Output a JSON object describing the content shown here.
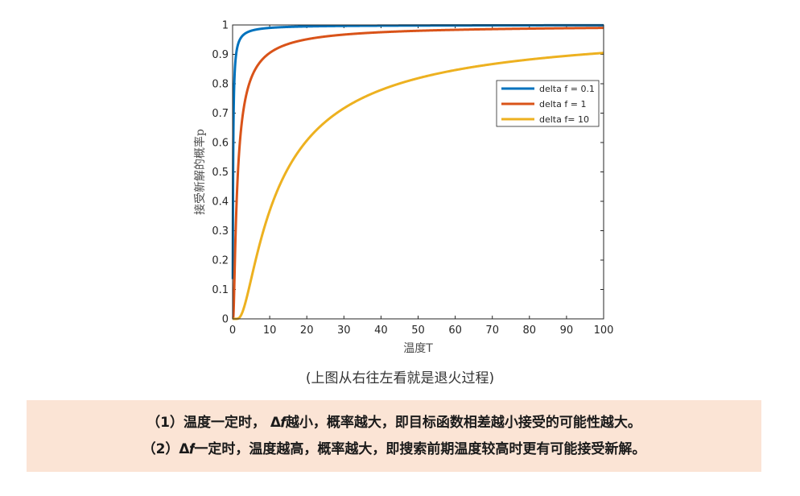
{
  "chart_data": {
    "type": "line",
    "xlabel": "温度T",
    "ylabel": "接受新解的概率p",
    "xlim": [
      0,
      100
    ],
    "ylim": [
      0,
      1
    ],
    "xticks": [
      "0",
      "10",
      "20",
      "30",
      "40",
      "50",
      "60",
      "70",
      "80",
      "90",
      "100"
    ],
    "yticks": [
      "0",
      "0.1",
      "0.2",
      "0.3",
      "0.4",
      "0.5",
      "0.6",
      "0.7",
      "0.8",
      "0.9",
      "1"
    ],
    "grid": false,
    "legend_position": "right-upper",
    "series": [
      {
        "name": "delta f = 0.1",
        "color": "#0072bd",
        "delta_f": 0.1,
        "x": [
          0.1,
          0.5,
          1,
          2,
          5,
          10,
          20,
          50,
          100
        ],
        "y": [
          0.368,
          0.819,
          0.905,
          0.951,
          0.98,
          0.99,
          0.995,
          0.998,
          0.999
        ]
      },
      {
        "name": "delta f = 1",
        "color": "#d95319",
        "delta_f": 1,
        "x": [
          0.1,
          0.5,
          1,
          2,
          5,
          10,
          20,
          50,
          100
        ],
        "y": [
          0.0,
          0.135,
          0.368,
          0.607,
          0.819,
          0.905,
          0.951,
          0.98,
          0.99
        ]
      },
      {
        "name": "delta f= 10",
        "color": "#edb120",
        "delta_f": 10,
        "x": [
          1,
          2,
          5,
          10,
          20,
          30,
          50,
          70,
          100
        ],
        "y": [
          0.0,
          0.007,
          0.135,
          0.368,
          0.607,
          0.717,
          0.819,
          0.867,
          0.905
        ]
      }
    ]
  },
  "caption": "(上图从右往左看就是退火过程)",
  "notes": [
    "（1）温度一定时，  Δ𝒇越小，概率越大，即目标函数相差越小接受的可能性越大。",
    "（2）Δ𝒇一定时，温度越高，概率越大，即搜索前期温度较高时更有可能接受新解。"
  ]
}
